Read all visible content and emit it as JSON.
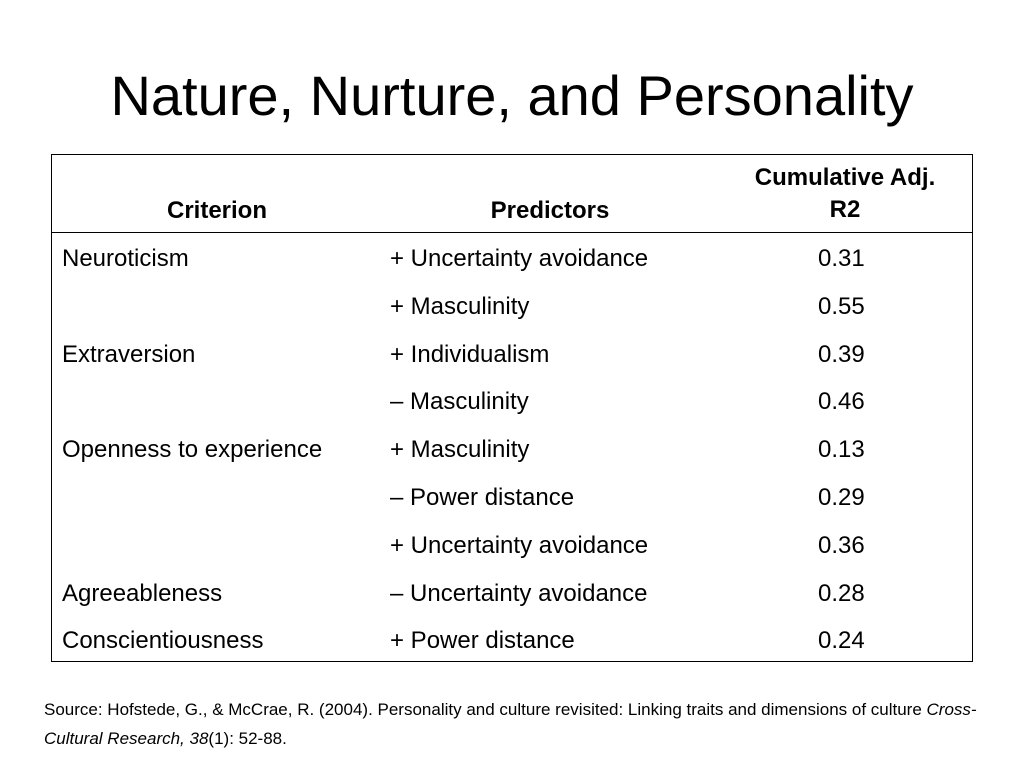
{
  "slide": {
    "title": "Nature, Nurture, and Personality"
  },
  "table": {
    "headers": {
      "criterion": "Criterion",
      "predictors": "Predictors",
      "r2_line1": "Cumulative Adj.",
      "r2_line2": "R2"
    },
    "rows": [
      {
        "criterion": "Neuroticism",
        "predictor": "+ Uncertainty avoidance",
        "r2": "0.31"
      },
      {
        "criterion": "",
        "predictor": "+ Masculinity",
        "r2": "0.55"
      },
      {
        "criterion": "Extraversion",
        "predictor": "+ Individualism",
        "r2": "0.39"
      },
      {
        "criterion": "",
        "predictor": "– Masculinity",
        "r2": "0.46"
      },
      {
        "criterion": "Openness to experience",
        "predictor": "+ Masculinity",
        "r2": "0.13"
      },
      {
        "criterion": "",
        "predictor": "– Power distance",
        "r2": "0.29"
      },
      {
        "criterion": "",
        "predictor": "+ Uncertainty avoidance",
        "r2": "0.36"
      },
      {
        "criterion": "Agreeableness",
        "predictor": "– Uncertainty avoidance",
        "r2": "0.28"
      },
      {
        "criterion": "Conscientiousness",
        "predictor": "+ Power distance",
        "r2": "0.24"
      }
    ]
  },
  "source": {
    "prefix": "Source: Hofstede, G., & McCrae, R. (2004). Personality and culture revisited: Linking traits and dimensions of culture ",
    "journal": "Cross-Cultural Research, 38",
    "suffix": "(1): 52-88."
  }
}
